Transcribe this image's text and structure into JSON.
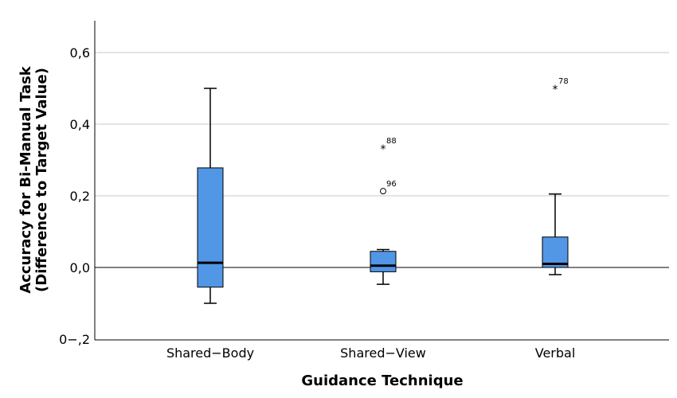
{
  "chart_data": {
    "type": "boxplot",
    "title": "",
    "xlabel": "Guidance Technique",
    "ylabel_lines": [
      "Accuracy for Bi-Manual Task",
      "(Difference to Target Value)"
    ],
    "ylim": [
      -0.2,
      0.68
    ],
    "yticks": [
      -0.2,
      0,
      0.2,
      0.4,
      0.6
    ],
    "ytick_labels": [
      "0−,2",
      "0,0",
      "0,2",
      "0,4",
      "0,6"
    ],
    "grid": true,
    "reference_line": 0,
    "box_color": "#5296e6",
    "categories": [
      "Shared−Body",
      "Shared−View",
      "Verbal"
    ],
    "boxes": [
      {
        "category": "Shared−Body",
        "whisker_low": -0.1,
        "q1": -0.055,
        "median": 0.013,
        "q3": 0.278,
        "whisker_high": 0.5,
        "outliers": []
      },
      {
        "category": "Shared−View",
        "whisker_low": -0.047,
        "q1": -0.012,
        "median": 0.005,
        "q3": 0.045,
        "whisker_high": 0.05,
        "outliers": [
          {
            "value": 0.333,
            "label": "88",
            "marker": "*"
          },
          {
            "value": 0.213,
            "label": "96",
            "marker": "o"
          }
        ]
      },
      {
        "category": "Verbal",
        "whisker_low": -0.02,
        "q1": 0.0,
        "median": 0.01,
        "q3": 0.085,
        "whisker_high": 0.205,
        "outliers": [
          {
            "value": 0.5,
            "label": "78",
            "marker": "*"
          }
        ]
      }
    ]
  }
}
